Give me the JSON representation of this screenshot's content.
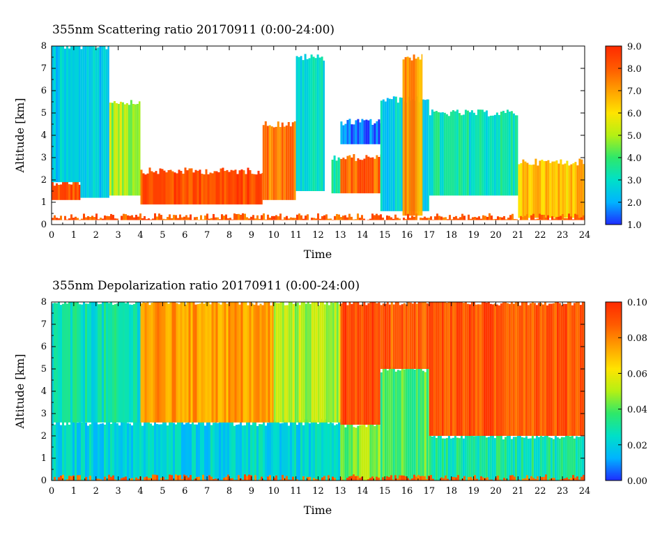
{
  "chart_data": [
    {
      "type": "heatmap",
      "title": "355nm Scattering ratio  20170911 (0:00-24:00)",
      "xlabel": "Time",
      "ylabel": "Altitude [km]",
      "xlim": [
        0,
        24
      ],
      "ylim": [
        0,
        8
      ],
      "x_ticks": [
        "0",
        "1",
        "2",
        "3",
        "4",
        "5",
        "6",
        "7",
        "8",
        "9",
        "10",
        "11",
        "12",
        "13",
        "14",
        "15",
        "16",
        "17",
        "18",
        "19",
        "20",
        "21",
        "22",
        "23",
        "24"
      ],
      "y_ticks": [
        "0",
        "1",
        "2",
        "3",
        "4",
        "5",
        "6",
        "7",
        "8"
      ],
      "colorbar": {
        "range": [
          1.0,
          9.0
        ],
        "ticks": [
          "1.0",
          "2.0",
          "3.0",
          "4.0",
          "5.0",
          "6.0",
          "7.0",
          "8.0",
          "9.0"
        ],
        "colors": [
          "#1e2cff",
          "#00b4ff",
          "#00e0c8",
          "#2ee86a",
          "#b4f014",
          "#ffe400",
          "#ffa000",
          "#ff5a00",
          "#ff2a00"
        ]
      },
      "regions": [
        {
          "t0": 0.0,
          "t1": 1.3,
          "z0": 1.1,
          "z1": 1.9,
          "v": 8.2
        },
        {
          "t0": 0.0,
          "t1": 1.3,
          "z0": 1.9,
          "z1": 8.0,
          "v": 2.4
        },
        {
          "t0": 1.3,
          "t1": 2.6,
          "z0": 1.2,
          "z1": 8.0,
          "v": 2.6
        },
        {
          "t0": 2.6,
          "t1": 4.0,
          "z0": 1.3,
          "z1": 5.5,
          "v": 5.0
        },
        {
          "t0": 4.0,
          "t1": 9.5,
          "z0": 0.9,
          "z1": 2.4,
          "v": 8.3
        },
        {
          "t0": 9.5,
          "t1": 11.0,
          "z0": 1.1,
          "z1": 4.5,
          "v": 7.6
        },
        {
          "t0": 11.0,
          "t1": 12.3,
          "z0": 1.5,
          "z1": 7.5,
          "v": 3.0
        },
        {
          "t0": 12.6,
          "t1": 13.0,
          "z0": 1.4,
          "z1": 3.0,
          "v": 3.4
        },
        {
          "t0": 13.0,
          "t1": 14.8,
          "z0": 1.4,
          "z1": 3.0,
          "v": 7.9
        },
        {
          "t0": 13.0,
          "t1": 14.8,
          "z0": 3.6,
          "z1": 4.6,
          "v": 1.6
        },
        {
          "t0": 14.8,
          "t1": 17.0,
          "z0": 0.6,
          "z1": 5.6,
          "v": 2.7
        },
        {
          "t0": 15.8,
          "t1": 16.7,
          "z0": 0.4,
          "z1": 7.5,
          "v": 7.0
        },
        {
          "t0": 17.0,
          "t1": 21.0,
          "z0": 1.3,
          "z1": 5.0,
          "v": 3.2
        },
        {
          "t0": 21.0,
          "t1": 24.0,
          "z0": 0.3,
          "z1": 2.8,
          "v": 6.5
        },
        {
          "t0": 0.0,
          "t1": 24.0,
          "z0": 0.2,
          "z1": 0.35,
          "v": 8.0
        }
      ]
    },
    {
      "type": "heatmap",
      "title": "355nm Depolarization ratio  20170911 (0:00-24:00)",
      "xlabel": "Time",
      "ylabel": "Altitude [km]",
      "xlim": [
        0,
        24
      ],
      "ylim": [
        0,
        8
      ],
      "x_ticks": [
        "0",
        "1",
        "2",
        "3",
        "4",
        "5",
        "6",
        "7",
        "8",
        "9",
        "10",
        "11",
        "12",
        "13",
        "14",
        "15",
        "16",
        "17",
        "18",
        "19",
        "20",
        "21",
        "22",
        "23",
        "24"
      ],
      "y_ticks": [
        "0",
        "1",
        "2",
        "3",
        "4",
        "5",
        "6",
        "7",
        "8"
      ],
      "colorbar": {
        "range": [
          0.0,
          0.1
        ],
        "ticks": [
          "0.00",
          "0.02",
          "0.04",
          "0.06",
          "0.08",
          "0.10"
        ],
        "colors": [
          "#1e2cff",
          "#00b4ff",
          "#00e0c8",
          "#2ee86a",
          "#b4f014",
          "#ffe400",
          "#ffa000",
          "#ff5a00",
          "#ff2a00"
        ]
      },
      "regions": [
        {
          "t0": 0.0,
          "t1": 13.0,
          "z0": 0.0,
          "z1": 2.6,
          "v": 0.021
        },
        {
          "t0": 0.0,
          "t1": 4.0,
          "z0": 2.6,
          "z1": 8.0,
          "v": 0.027
        },
        {
          "t0": 4.0,
          "t1": 10.0,
          "z0": 2.6,
          "z1": 8.0,
          "v": 0.075
        },
        {
          "t0": 10.0,
          "t1": 13.0,
          "z0": 2.6,
          "z1": 8.0,
          "v": 0.05
        },
        {
          "t0": 13.0,
          "t1": 14.8,
          "z0": 0.0,
          "z1": 2.5,
          "v": 0.045
        },
        {
          "t0": 13.0,
          "t1": 14.8,
          "z0": 2.5,
          "z1": 8.0,
          "v": 0.092
        },
        {
          "t0": 14.8,
          "t1": 17.0,
          "z0": 0.0,
          "z1": 5.0,
          "v": 0.04
        },
        {
          "t0": 14.8,
          "t1": 17.0,
          "z0": 5.0,
          "z1": 8.0,
          "v": 0.088
        },
        {
          "t0": 17.0,
          "t1": 24.0,
          "z0": 0.0,
          "z1": 2.0,
          "v": 0.03
        },
        {
          "t0": 17.0,
          "t1": 24.0,
          "z0": 2.0,
          "z1": 8.0,
          "v": 0.09
        },
        {
          "t0": 0.0,
          "t1": 24.0,
          "z0": 0.0,
          "z1": 0.12,
          "v": 0.085
        }
      ]
    }
  ]
}
